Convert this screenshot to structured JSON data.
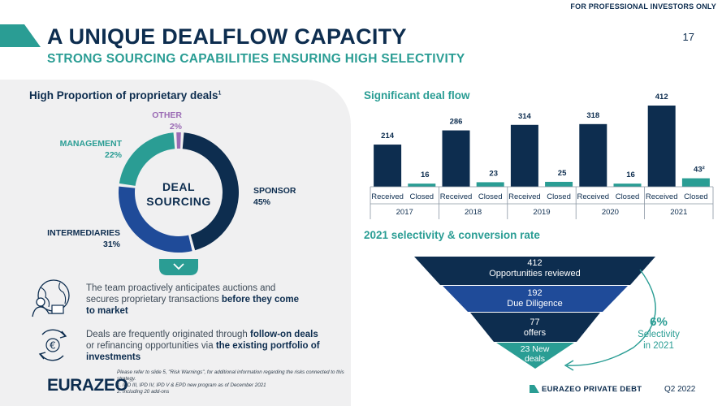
{
  "header": {
    "tag": "FOR PROFESSIONAL INVESTORS ONLY",
    "title": "A UNIQUE DEALFLOW CAPACITY",
    "subtitle": "STRONG SOURCING CAPABILITIES ENSURING HIGH SELECTIVITY",
    "page_number": "17"
  },
  "left": {
    "section_title": "High Proportion of proprietary deals",
    "section_sup": "1",
    "donut_center": [
      "DEAL",
      "SOURCING"
    ],
    "segments": [
      {
        "name": "SPONSOR",
        "pct": "45%",
        "value": 45,
        "color": "#0d2d4f"
      },
      {
        "name": "INTERMEDIARIES",
        "pct": "31%",
        "value": 31,
        "color": "#1f4b99"
      },
      {
        "name": "MANAGEMENT",
        "pct": "22%",
        "value": 22,
        "color": "#2a9d94"
      },
      {
        "name": "OTHER",
        "pct": "2%",
        "value": 2,
        "color": "#9b6cb5"
      }
    ],
    "para1": {
      "t1": "The team proactively anticipates auctions and secures proprietary transactions ",
      "b1": "before they come to market"
    },
    "para2": {
      "t1": "Deals are frequently originated through ",
      "b1": "follow-on deals",
      "t2": " or refinancing opportunities via ",
      "b2": "the existing portfolio of investments"
    },
    "footnotes": [
      "Please refer to slide 5, \"Risk Warnings\", for additional information regarding the risks connected to this strategy.",
      "1.     IPD III, IPD IV, IPD V & EPD new program as of December 2021",
      "2.     Including 20 add-ons"
    ],
    "logo": "EURAZEO"
  },
  "deal_flow": {
    "title": "Significant deal flow",
    "chart_data": {
      "type": "bar",
      "categories": [
        "Received",
        "Closed",
        "Received",
        "Closed",
        "Received",
        "Closed",
        "Received",
        "Closed",
        "Received",
        "Closed"
      ],
      "years": [
        "2017",
        "2018",
        "2019",
        "2020",
        "2021"
      ],
      "values": [
        214,
        16,
        286,
        23,
        314,
        25,
        318,
        16,
        412,
        43
      ],
      "value_labels": [
        "214",
        "16",
        "286",
        "23",
        "314",
        "25",
        "318",
        "16",
        "412",
        "43²"
      ],
      "colors": [
        "#0d2d4f",
        "#2a9d94"
      ],
      "ylim": [
        0,
        412
      ]
    }
  },
  "selectivity": {
    "title": "2021 selectivity & conversion rate",
    "levels": [
      {
        "value": "412",
        "label": "Opportunities reviewed"
      },
      {
        "value": "192",
        "label": "Due Diligence"
      },
      {
        "value": "77",
        "label": "offers"
      },
      {
        "value": "23 New",
        "label": "deals"
      }
    ],
    "rate": "6%",
    "rate_label": [
      "Selectivity",
      "in 2021"
    ]
  },
  "footer": {
    "brand": "EURAZEO PRIVATE DEBT",
    "quarter": "Q2 2022"
  }
}
